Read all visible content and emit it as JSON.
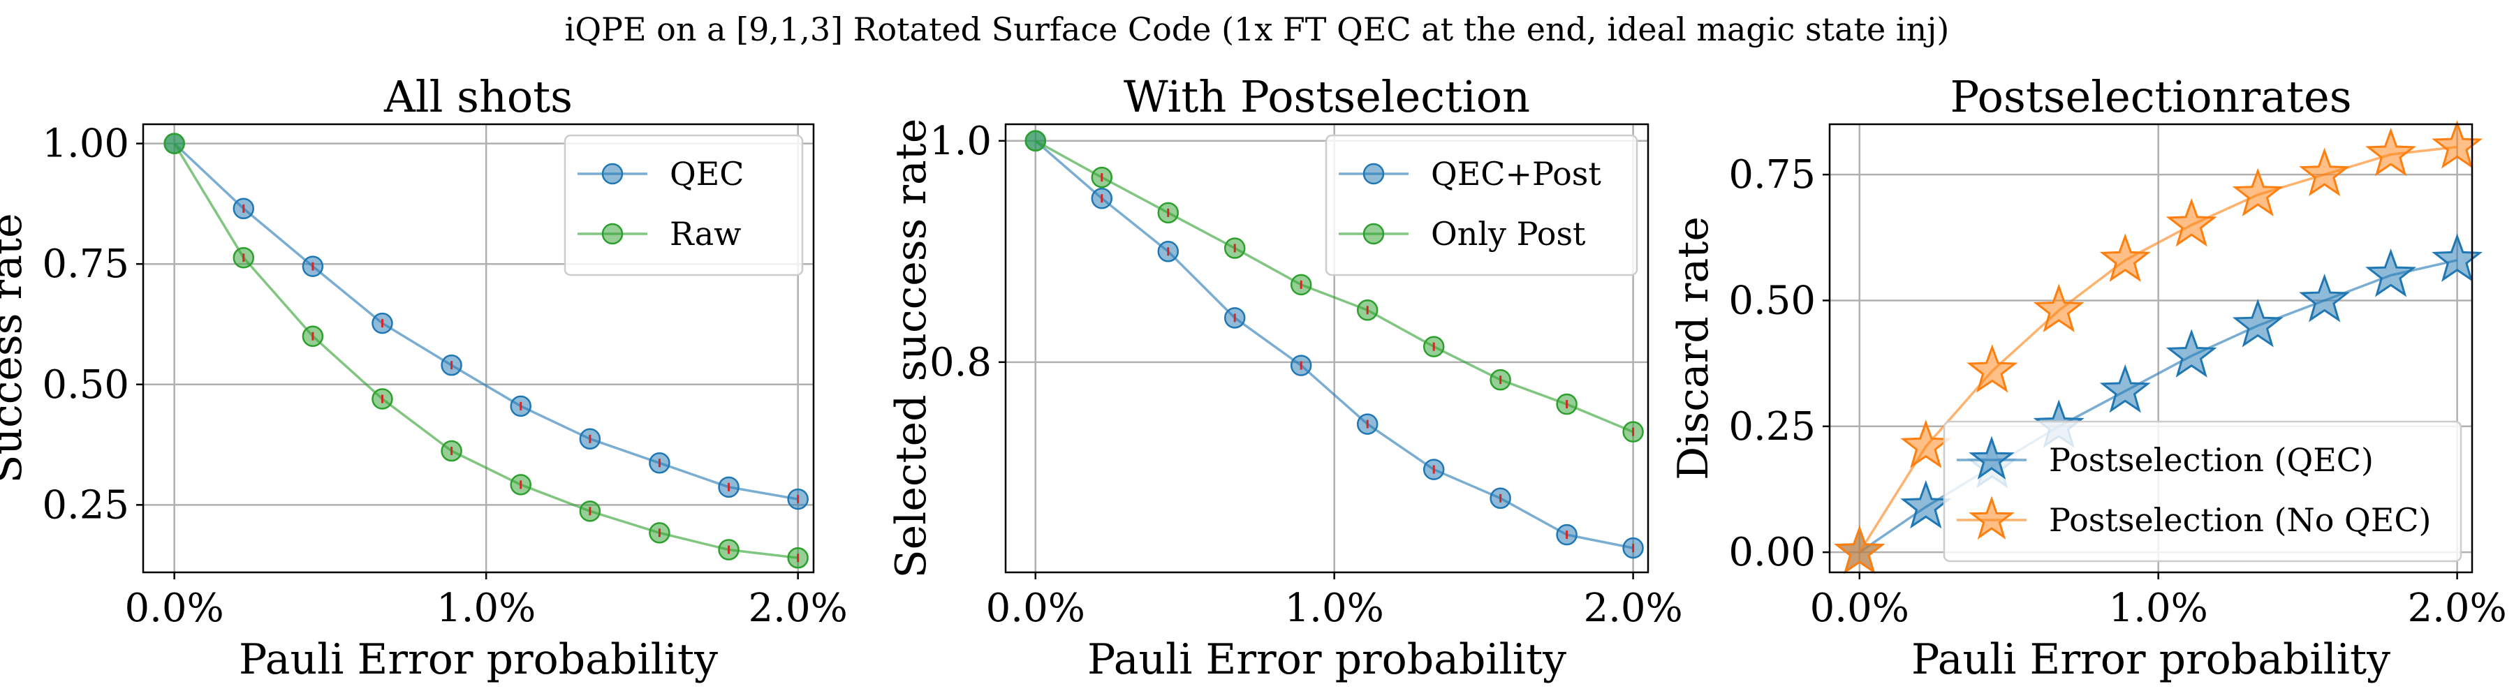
{
  "figure": {
    "suptitle": "iQPE on a [9,1,3] Rotated Surface Code (1x FT QEC at the end, ideal magic state inj)"
  },
  "colors": {
    "blue": "#1f77b4",
    "orange": "#ff7f0e",
    "green": "#2ca02c",
    "errorbar": "#d62728"
  },
  "chart_data": [
    {
      "type": "line",
      "title": "All shots",
      "xlabel": "Pauli Error probability",
      "ylabel": "Success rate",
      "xlim": [
        -0.1,
        2.05
      ],
      "ylim": [
        0.11,
        1.04
      ],
      "xticks": [
        0.0,
        1.0,
        2.0
      ],
      "xtick_labels": [
        "0.0%",
        "1.0%",
        "2.0%"
      ],
      "yticks": [
        0.25,
        0.5,
        0.75,
        1.0
      ],
      "ytick_labels": [
        "0.25",
        "0.50",
        "0.75",
        "1.00"
      ],
      "grid": true,
      "legend_position": "top-right",
      "x": [
        0.0,
        0.222,
        0.444,
        0.667,
        0.889,
        1.111,
        1.333,
        1.556,
        1.778,
        2.0
      ],
      "series": [
        {
          "name": "QEC",
          "color": "blue",
          "marker": "circle",
          "values": [
            1.0,
            0.865,
            0.745,
            0.627,
            0.54,
            0.455,
            0.387,
            0.337,
            0.287,
            0.262
          ]
        },
        {
          "name": "Raw",
          "color": "green",
          "marker": "circle",
          "values": [
            1.0,
            0.763,
            0.6,
            0.47,
            0.362,
            0.292,
            0.237,
            0.192,
            0.157,
            0.14
          ]
        }
      ]
    },
    {
      "type": "line",
      "title": "With Postselection",
      "xlabel": "Pauli Error probability",
      "ylabel": "Selected success rate",
      "xlim": [
        -0.1,
        2.05
      ],
      "ylim": [
        0.61,
        1.015
      ],
      "xticks": [
        0.0,
        1.0,
        2.0
      ],
      "xtick_labels": [
        "0.0%",
        "1.0%",
        "2.0%"
      ],
      "yticks": [
        0.8,
        1.0
      ],
      "ytick_labels": [
        "0.8",
        "1.0"
      ],
      "grid": true,
      "legend_position": "top-right",
      "x": [
        0.0,
        0.222,
        0.444,
        0.667,
        0.889,
        1.111,
        1.333,
        1.556,
        1.778,
        2.0
      ],
      "series": [
        {
          "name": "QEC+Post",
          "color": "blue",
          "marker": "circle",
          "values": [
            1.0,
            0.948,
            0.9,
            0.84,
            0.797,
            0.744,
            0.703,
            0.677,
            0.644,
            0.632
          ]
        },
        {
          "name": "Only Post",
          "color": "green",
          "marker": "circle",
          "values": [
            1.0,
            0.967,
            0.935,
            0.903,
            0.87,
            0.847,
            0.814,
            0.784,
            0.762,
            0.737
          ]
        }
      ]
    },
    {
      "type": "line",
      "title": "Postselectionrates",
      "xlabel": "Pauli Error probability",
      "ylabel": "Discard rate",
      "xlim": [
        -0.1,
        2.05
      ],
      "ylim": [
        -0.04,
        0.85
      ],
      "xticks": [
        0.0,
        1.0,
        2.0
      ],
      "xtick_labels": [
        "0.0%",
        "1.0%",
        "2.0%"
      ],
      "yticks": [
        0.0,
        0.25,
        0.5,
        0.75
      ],
      "ytick_labels": [
        "0.00",
        "0.25",
        "0.50",
        "0.75"
      ],
      "grid": true,
      "legend_position": "lower-right",
      "x": [
        0.0,
        0.222,
        0.444,
        0.667,
        0.889,
        1.111,
        1.333,
        1.556,
        1.778,
        2.0
      ],
      "series": [
        {
          "name": "Postselection (QEC)",
          "color": "blue",
          "marker": "star",
          "values": [
            0.0,
            0.09,
            0.17,
            0.25,
            0.32,
            0.39,
            0.45,
            0.5,
            0.55,
            0.58
          ]
        },
        {
          "name": "Postselection (No QEC)",
          "color": "orange",
          "marker": "star",
          "values": [
            0.0,
            0.21,
            0.36,
            0.48,
            0.58,
            0.65,
            0.71,
            0.75,
            0.79,
            0.805
          ]
        }
      ]
    }
  ]
}
